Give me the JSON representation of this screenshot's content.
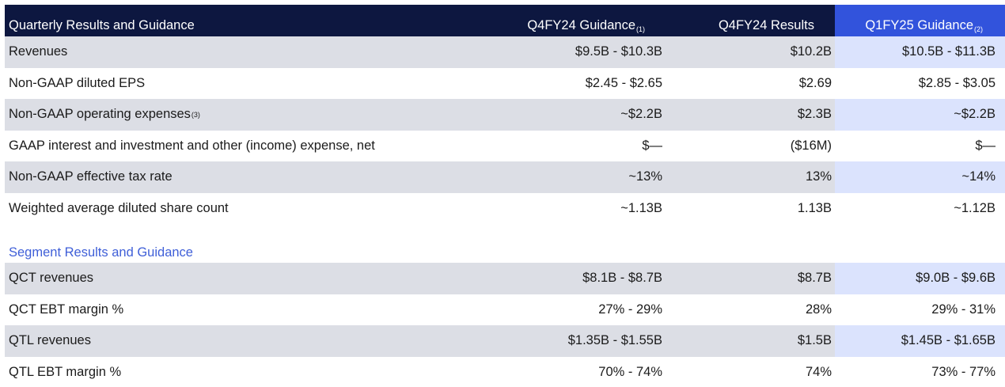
{
  "header": {
    "title": "Quarterly Results and Guidance",
    "col1": "Q4FY24 Guidance",
    "col1_note": "(1)",
    "col2": "Q4FY24 Results",
    "col3": "Q1FY25 Guidance",
    "col3_note": "(2)"
  },
  "rows": [
    {
      "label": "Revenues",
      "note": "",
      "g": "$9.5B - $10.3B",
      "r": "$10.2B",
      "n": "$10.5B - $11.3B"
    },
    {
      "label": "Non-GAAP diluted EPS",
      "note": "",
      "g": "$2.45 - $2.65",
      "r": "$2.69",
      "n": "$2.85 - $3.05"
    },
    {
      "label": "Non-GAAP operating expenses",
      "note": "(3)",
      "g": "~$2.2B",
      "r": "$2.3B",
      "n": "~$2.2B"
    },
    {
      "label": "GAAP interest and investment and other (income) expense, net",
      "note": "",
      "g": "$—",
      "r": "($16M)",
      "n": "$—"
    },
    {
      "label": "Non-GAAP effective tax rate",
      "note": "",
      "g": "~13%",
      "r": "13%",
      "n": "~14%"
    },
    {
      "label": "Weighted average diluted share count",
      "note": "",
      "g": "~1.13B",
      "r": "1.13B",
      "n": "~1.12B"
    }
  ],
  "segment_title": "Segment Results and Guidance",
  "segment_rows": [
    {
      "label": "QCT revenues",
      "g": "$8.1B - $8.7B",
      "r": "$8.7B",
      "n": "$9.0B - $9.6B"
    },
    {
      "label": "QCT EBT margin %",
      "g": "27% - 29%",
      "r": "28%",
      "n": "29% - 31%"
    },
    {
      "label": "QTL revenues",
      "g": "$1.35B - $1.55B",
      "r": "$1.5B",
      "n": "$1.45B - $1.65B"
    },
    {
      "label": "QTL EBT margin %",
      "g": "70% - 74%",
      "r": "74%",
      "n": "73% - 77%"
    }
  ],
  "colors": {
    "header_bg": "#0d1740",
    "highlight_header_bg": "#3253dc",
    "segment_title": "#3f5fd8"
  }
}
